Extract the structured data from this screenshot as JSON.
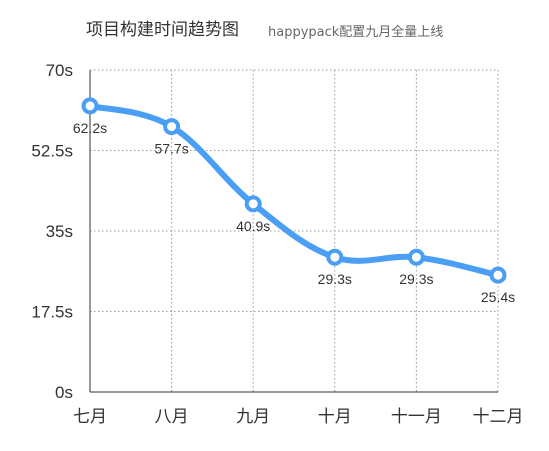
{
  "chart_data": {
    "type": "line",
    "title": "项目构建时间趋势图",
    "subtitle": "happypack配置九月全量上线",
    "categories": [
      "七月",
      "八月",
      "九月",
      "十月",
      "十一月",
      "十二月"
    ],
    "values": [
      62.2,
      57.7,
      40.9,
      29.3,
      29.3,
      25.4
    ],
    "value_labels": [
      "62.2s",
      "57.7s",
      "40.9s",
      "29.3s",
      "29.3s",
      "25.4s"
    ],
    "ylim": [
      0,
      70
    ],
    "yticks": [
      0,
      17.5,
      35,
      52.5,
      70
    ],
    "ytick_labels": [
      "0s",
      "17.5s",
      "35s",
      "52.5s",
      "70s"
    ],
    "grid": true,
    "colors": {
      "line": "#4a9ff5",
      "marker_fill": "#ffffff",
      "text": "#333333"
    }
  }
}
